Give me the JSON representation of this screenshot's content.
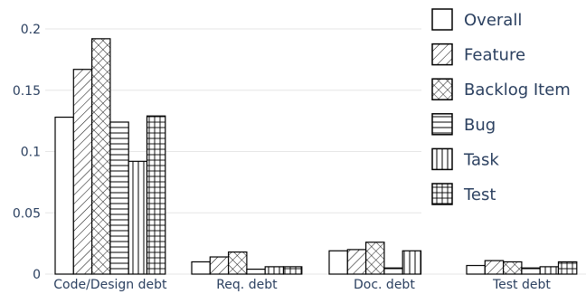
{
  "chart_data": {
    "type": "bar",
    "categories": [
      "Code/Design debt",
      "Req. debt",
      "Doc. debt",
      "Test debt"
    ],
    "series": [
      {
        "name": "Overall",
        "pattern": "none",
        "values": [
          0.128,
          0.01,
          0.019,
          0.007
        ]
      },
      {
        "name": "Feature",
        "pattern": "diagonal",
        "values": [
          0.167,
          0.014,
          0.02,
          0.011
        ]
      },
      {
        "name": "Backlog Item",
        "pattern": "crosshatch",
        "values": [
          0.192,
          0.018,
          0.026,
          0.01
        ]
      },
      {
        "name": "Bug",
        "pattern": "horizontal",
        "values": [
          0.124,
          0.004,
          0.005,
          0.005
        ]
      },
      {
        "name": "Task",
        "pattern": "vertical",
        "values": [
          0.092,
          0.006,
          0.019,
          0.006
        ]
      },
      {
        "name": "Test",
        "pattern": "grid",
        "values": [
          0.129,
          0.006,
          0.0,
          0.01
        ]
      }
    ],
    "yticks": [
      "0",
      "0.05",
      "0.1",
      "0.15",
      "0.2"
    ],
    "ytick_values": [
      0,
      0.05,
      0.1,
      0.15,
      0.2
    ],
    "ylim": [
      0,
      0.2
    ],
    "grid": "horizontal",
    "legend_position": "top-right",
    "title": "",
    "xlabel": "",
    "ylabel": "",
    "colors": {
      "bar_fill": "#ffffff",
      "bar_stroke": "#000000",
      "grid": "#e6e6e6",
      "text": "#2a3f5f"
    }
  }
}
